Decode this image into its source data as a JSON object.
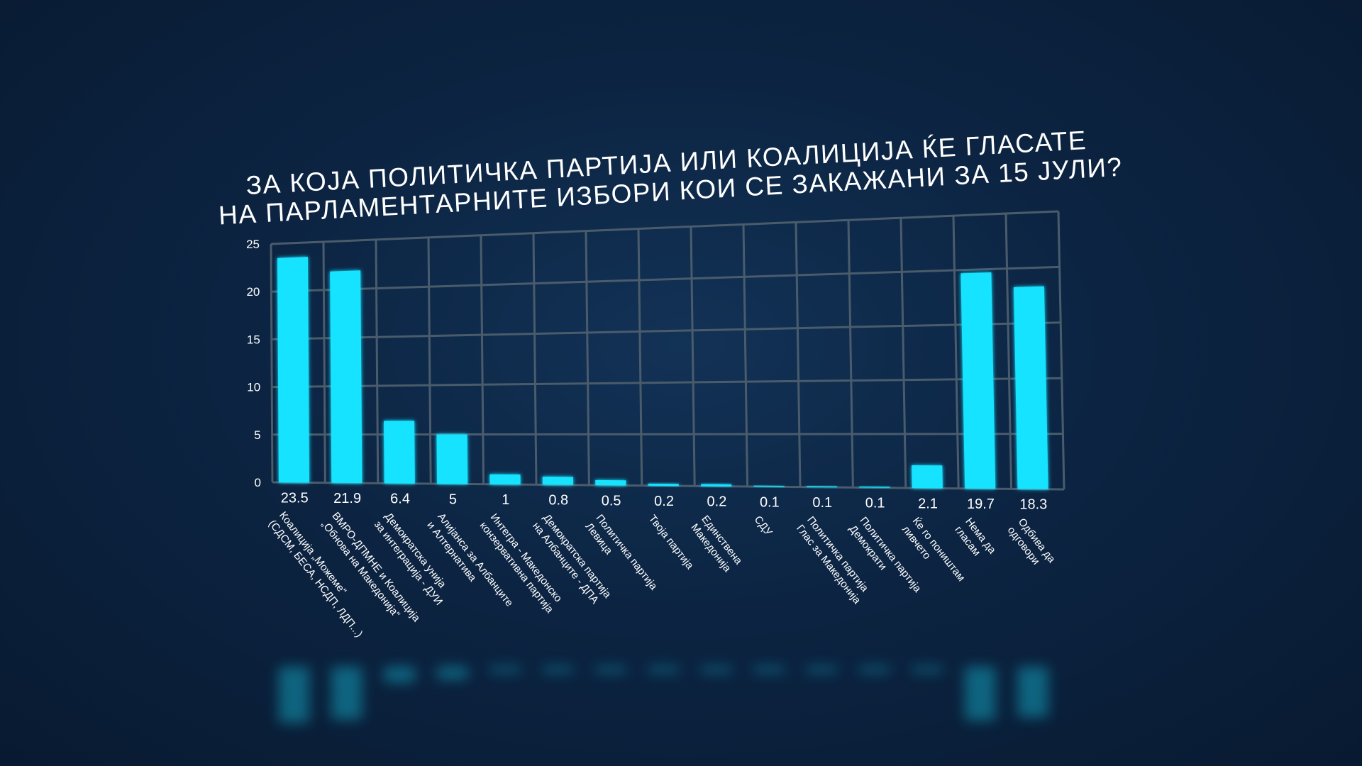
{
  "chart_data": {
    "type": "bar",
    "title_lines": [
      "ЗА КОЈА ПОЛИТИЧКА ПАРТИЈА ИЛИ КОАЛИЦИЈА ЌЕ ГЛАСАТЕ",
      "НА ПАРЛАМЕНТАРНИТЕ ИЗБОРИ КОИ СЕ ЗАКАЖАНИ ЗА 15 ЈУЛИ?"
    ],
    "ylim": [
      0,
      25
    ],
    "yticks": [
      "0",
      "5",
      "10",
      "15",
      "20",
      "25"
    ],
    "grid": true,
    "colors": {
      "bar": "#19e3ff",
      "grid": "#4a5c6c",
      "text": "#ffffff"
    },
    "categories": [
      [
        "Коалиција „Можеме“",
        "(СДСМ, БЕСА, НСДП, ЛДП...)"
      ],
      [
        "ВМРО-ДПМНЕ и Коалиција",
        "„Обнова на Македонија“"
      ],
      [
        "Демократска унија",
        "за интеграција - ДУИ"
      ],
      [
        "Алијанса за Албанците",
        "и Алтернатива"
      ],
      [
        "Интегра - Македонско",
        "конзервативна партија"
      ],
      [
        "Демократска партија",
        "на Албанците - ДПА"
      ],
      [
        "Политичка партија",
        "Левица"
      ],
      [
        "Твоја партија"
      ],
      [
        "Единствена",
        "Македонија"
      ],
      [
        "СДУ"
      ],
      [
        "Политичка партија",
        "Глас за Македонија"
      ],
      [
        "Политичка партија",
        "Демократи"
      ],
      [
        "Ќе го поништам",
        "ливчето"
      ],
      [
        "Нема да",
        "гласам"
      ],
      [
        "Одбива да",
        "одговори"
      ]
    ],
    "values": [
      23.5,
      21.9,
      6.4,
      5,
      1,
      0.8,
      0.5,
      0.2,
      0.2,
      0.1,
      0.1,
      0.1,
      2.1,
      19.7,
      18.3
    ],
    "value_labels": [
      "23.5",
      "21.9",
      "6.4",
      "5",
      "1",
      "0.8",
      "0.5",
      "0.2",
      "0.2",
      "0.1",
      "0.1",
      "0.1",
      "2.1",
      "19.7",
      "18.3"
    ]
  }
}
